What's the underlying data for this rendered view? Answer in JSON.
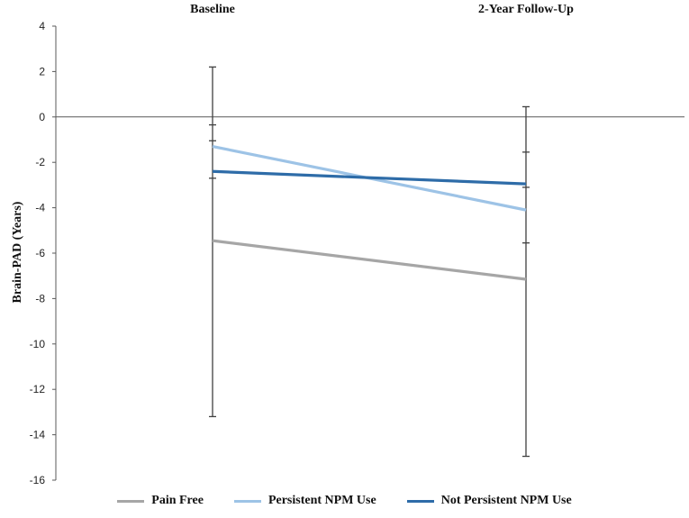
{
  "chart_data": {
    "type": "line",
    "categories": [
      "Baseline",
      "2-Year Follow-Up"
    ],
    "ylabel": "Brain-PAD (Years)",
    "xlabel": "",
    "ylim": [
      -16,
      4
    ],
    "yticks": [
      4,
      2,
      0,
      -2,
      -4,
      -6,
      -8,
      -10,
      -12,
      -14,
      -16
    ],
    "legend_position": "bottom",
    "series": [
      {
        "name": "Pain Free",
        "color": "#a6a6a6",
        "values": [
          -5.45,
          -7.15
        ]
      },
      {
        "name": "Persistent NPM Use",
        "color": "#9dc3e6",
        "values": [
          -1.3,
          -4.1
        ]
      },
      {
        "name": "Not Persistent NPM Use",
        "color": "#2e6ca8",
        "values": [
          -2.4,
          -2.95
        ]
      }
    ],
    "error_bars": [
      {
        "category": "Baseline",
        "low": -13.2,
        "high": 2.2,
        "caps": [
          -0.35,
          -1.05,
          -2.7
        ]
      },
      {
        "category": "2-Year Follow-Up",
        "low": -14.95,
        "high": 0.45,
        "caps": [
          -1.55,
          -3.1,
          -5.55
        ]
      }
    ]
  }
}
